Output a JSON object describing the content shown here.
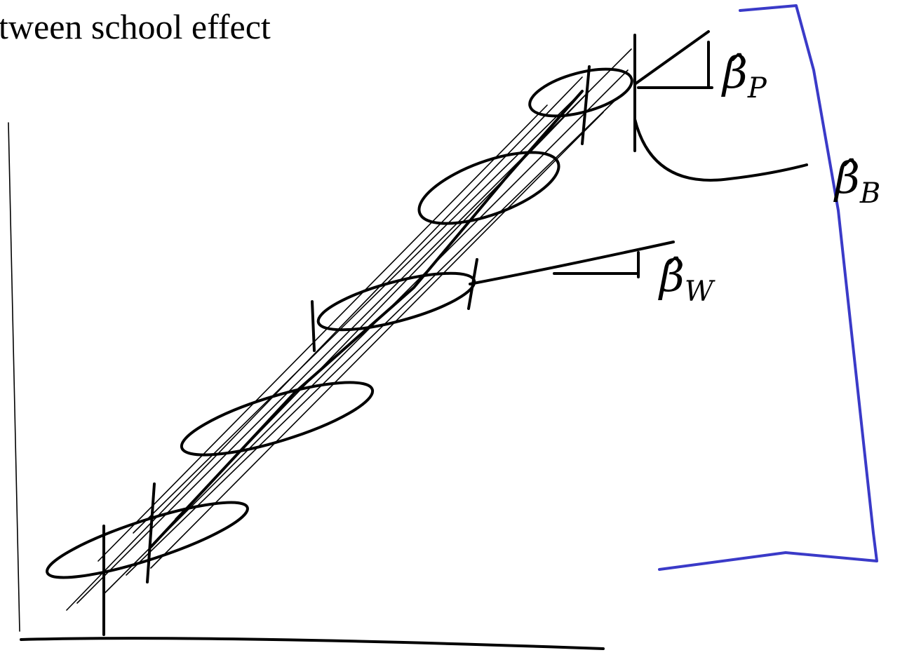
{
  "title": "tween school effect",
  "labels": [
    {
      "symbol": "β̂",
      "subscript": "P"
    },
    {
      "symbol": "β̂",
      "subscript": "B"
    },
    {
      "symbol": "β̂",
      "subscript": "W"
    }
  ]
}
